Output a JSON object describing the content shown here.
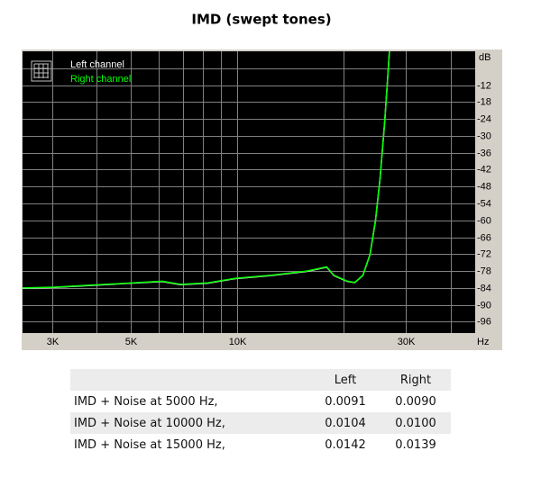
{
  "chart_data": {
    "type": "line",
    "title": "IMD (swept tones)",
    "x_label": "Hz",
    "y_label": "dB",
    "x": [
      2470,
      3040,
      3840,
      4860,
      6140,
      6900,
      8240,
      9820,
      12430,
      15720,
      17890,
      18740,
      20460,
      21470,
      22620,
      23710,
      24560,
      25310,
      26070,
      26510,
      26900
    ],
    "series": [
      {
        "name": "Left channel",
        "color": "#ffffff",
        "values": [
          -84.1,
          -83.8,
          -83.1,
          -82.4,
          -81.7,
          -82.8,
          -82.3,
          -80.7,
          -79.6,
          -78.1,
          -76.6,
          -79.6,
          -81.7,
          -82.1,
          -79.6,
          -72.1,
          -60.2,
          -45.2,
          -25.2,
          -12.2,
          0
        ]
      },
      {
        "name": "Right channel",
        "color": "#00ff00",
        "values": [
          -84.0,
          -83.7,
          -83.0,
          -82.3,
          -81.6,
          -82.7,
          -82.2,
          -80.6,
          -79.5,
          -78.0,
          -76.5,
          -79.5,
          -81.6,
          -82.0,
          -79.5,
          -72,
          -60,
          -45,
          -25,
          -12,
          0
        ]
      }
    ],
    "log_x": true,
    "xlim": [
      2470,
      47000
    ],
    "xticks": [
      {
        "value": 3000,
        "label": "3K"
      },
      {
        "value": 5000,
        "label": "5K"
      },
      {
        "value": 10000,
        "label": "10K"
      },
      {
        "value": 30000,
        "label": "30K"
      }
    ],
    "xminor": [
      4000,
      6000,
      7000,
      8000,
      9000,
      20000,
      40000
    ],
    "ylim": [
      -100,
      0
    ],
    "yticks": [
      -12,
      -18,
      -24,
      -30,
      -36,
      -42,
      -48,
      -54,
      -60,
      -66,
      -72,
      -78,
      -84,
      -90,
      -96
    ],
    "yminor": [
      -6
    ],
    "grid": true,
    "grid_color": "#808080",
    "background": "#000000",
    "legend": "top-left"
  },
  "table": {
    "columns": [
      "Left",
      "Right"
    ],
    "rows": [
      [
        "IMD + Noise at 5000 Hz,",
        "0.0091",
        "0.0090"
      ],
      [
        "IMD + Noise at 10000 Hz,",
        "0.0104",
        "0.0100"
      ],
      [
        "IMD + Noise at 15000 Hz,",
        "0.0142",
        "0.0139"
      ]
    ]
  }
}
